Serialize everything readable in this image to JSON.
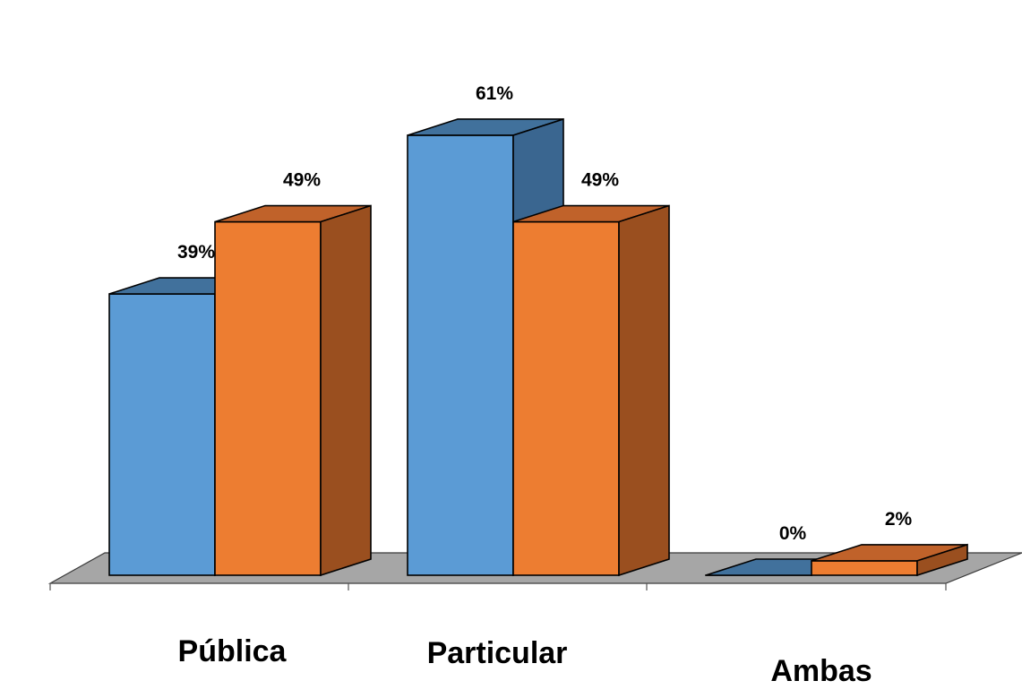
{
  "chart_data": {
    "type": "bar",
    "style": "3d-clustered-column",
    "categories": [
      "Pública",
      "Particular",
      "Ambas"
    ],
    "series": [
      {
        "values": [
          39,
          61,
          0
        ],
        "labels": [
          "39%",
          "61%",
          "0%"
        ],
        "color": "#5b9bd5",
        "top_color": "#41719c",
        "side_color": "#3a6690"
      },
      {
        "values": [
          49,
          49,
          2
        ],
        "labels": [
          "49%",
          "49%",
          "2%"
        ],
        "color": "#ed7d31",
        "top_color": "#c0622a",
        "side_color": "#9a4f1f"
      }
    ],
    "value_unit": "%",
    "floor_color": "#a6a6a6",
    "grid": false,
    "legend": "none"
  }
}
